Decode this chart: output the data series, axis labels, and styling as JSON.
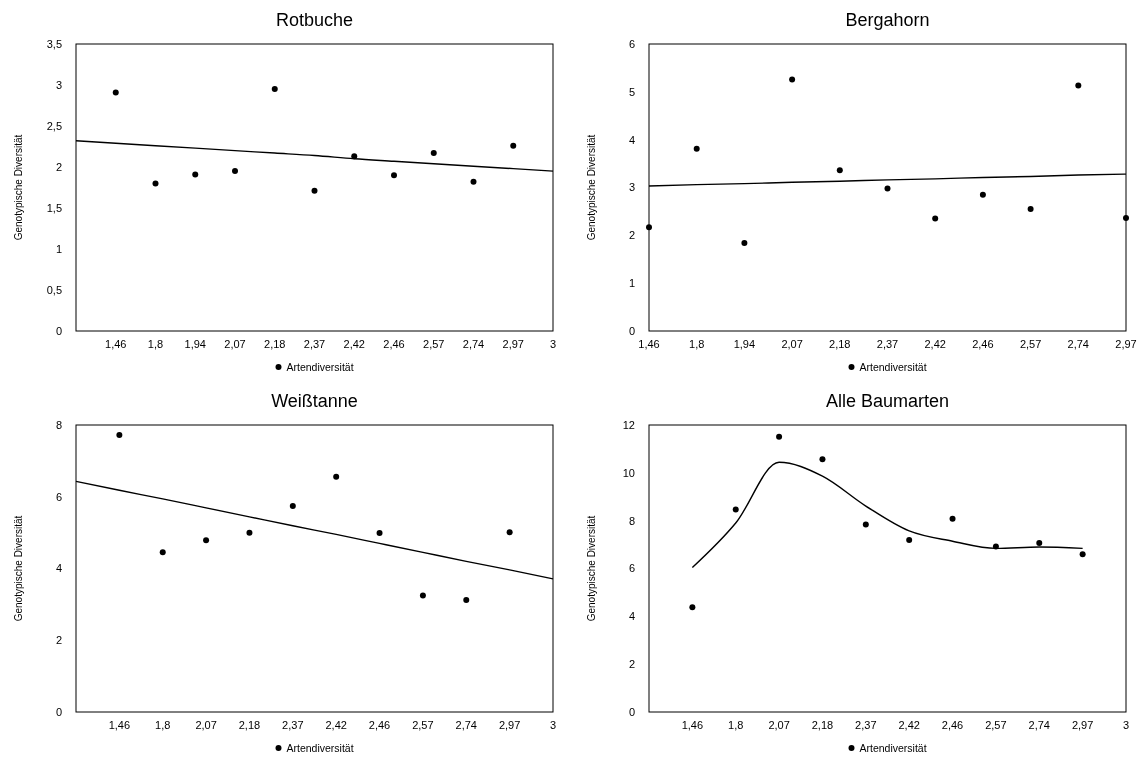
{
  "chart_data": [
    {
      "type": "scatter",
      "title": "Rotbuche",
      "ylabel": "Genotypische Diversität",
      "categories": [
        null,
        "1,46",
        "1,8",
        "1,94",
        "2,07",
        "2,18",
        "2,37",
        "2,42",
        "2,46",
        "2,57",
        "2,74",
        "2,97",
        "3"
      ],
      "ylim": [
        0,
        3.5
      ],
      "yticks": [
        0,
        {
          "value": 0.5,
          "label": "0,5"
        },
        1,
        {
          "value": 1.5,
          "label": "1,5"
        },
        2,
        {
          "value": 2.5,
          "label": "2,5"
        },
        3,
        {
          "value": 3.5,
          "label": "3,5"
        }
      ],
      "legend": "bottom",
      "marker": "circle",
      "series": [
        {
          "name": "Artendiversität",
          "color": "#000000",
          "values": [
            null,
            2.91,
            1.8,
            1.91,
            1.95,
            2.95,
            1.71,
            2.13,
            1.9,
            2.17,
            1.82,
            2.26,
            null
          ]
        },
        {
          "type": "line",
          "marker": "none",
          "color": "#000000",
          "values": [
            2.32,
            2.29,
            2.26,
            2.23,
            2.2,
            2.17,
            2.14,
            2.1,
            2.07,
            2.04,
            2.01,
            1.98,
            1.95
          ]
        }
      ]
    },
    {
      "type": "scatter",
      "title": "Bergahorn",
      "ylabel": "Genotypische Diversität",
      "categories": [
        "1,46",
        "1,8",
        "1,94",
        "2,07",
        "2,18",
        "2,37",
        "2,42",
        "2,46",
        "2,57",
        "2,74",
        "2,97"
      ],
      "ylim": [
        0,
        6
      ],
      "yticks": [
        0,
        1,
        2,
        3,
        4,
        5,
        6
      ],
      "legend": "bottom",
      "marker": "circle",
      "series": [
        {
          "name": "Artendiversität",
          "color": "#000000",
          "values": [
            2.17,
            3.81,
            1.84,
            5.26,
            3.36,
            2.98,
            2.35,
            2.85,
            2.55,
            5.13,
            2.36
          ]
        },
        {
          "type": "line",
          "marker": "none",
          "color": "#000000",
          "values": [
            3.03,
            3.06,
            3.08,
            3.11,
            3.13,
            3.16,
            3.18,
            3.21,
            3.23,
            3.26,
            3.28
          ]
        }
      ]
    },
    {
      "type": "scatter",
      "title": "Weißtanne",
      "ylabel": "Genotypische Diversität",
      "categories": [
        null,
        "1,46",
        "1,8",
        "2,07",
        "2,18",
        "2,37",
        "2,42",
        "2,46",
        "2,57",
        "2,74",
        "2,97",
        "3"
      ],
      "ylim": [
        0,
        8
      ],
      "yticks": [
        0,
        2,
        4,
        6,
        8
      ],
      "legend": "bottom",
      "marker": "circle",
      "series": [
        {
          "name": "Artendiversität",
          "color": "#000000",
          "values": [
            null,
            7.72,
            4.45,
            4.79,
            5.0,
            5.74,
            6.56,
            4.99,
            3.25,
            3.12,
            5.01,
            null
          ]
        },
        {
          "type": "line",
          "marker": "none",
          "color": "#000000",
          "values": [
            6.43,
            6.18,
            5.94,
            5.69,
            5.44,
            5.19,
            4.95,
            4.7,
            4.45,
            4.2,
            3.96,
            3.71
          ]
        }
      ]
    },
    {
      "type": "scatter",
      "title": "Alle Baumarten",
      "ylabel": "Genotypische Diversität",
      "categories": [
        null,
        "1,46",
        "1,8",
        "2,07",
        "2,18",
        "2,37",
        "2,42",
        "2,46",
        "2,57",
        "2,74",
        "2,97",
        "3"
      ],
      "ylim": [
        0,
        12
      ],
      "yticks": [
        0,
        2,
        4,
        6,
        8,
        10,
        12
      ],
      "legend": "bottom",
      "marker": "circle",
      "series": [
        {
          "name": "Artendiversität",
          "color": "#000000",
          "values": [
            null,
            4.38,
            8.47,
            11.51,
            10.57,
            7.84,
            7.19,
            8.08,
            6.92,
            7.07,
            6.6,
            null
          ]
        },
        {
          "type": "line",
          "marker": "none",
          "color": "#000000",
          "values": [
            null,
            6.04,
            7.9,
            10.44,
            9.86,
            8.61,
            7.57,
            7.14,
            6.84,
            6.9,
            6.84,
            null
          ]
        }
      ]
    }
  ]
}
